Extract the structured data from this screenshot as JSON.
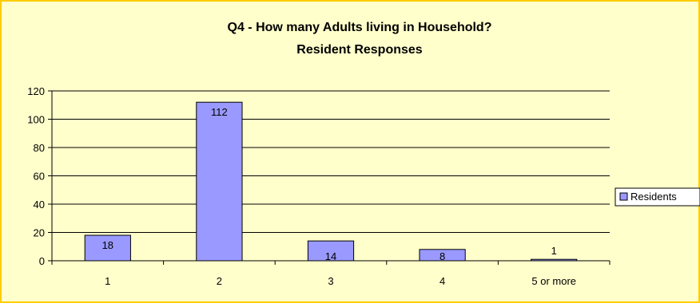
{
  "chart_data": {
    "type": "bar",
    "title": "Q4 - How many Adults living in Household?",
    "subtitle": "Resident Responses",
    "xlabel": "",
    "ylabel": "",
    "categories": [
      "1",
      "2",
      "3",
      "4",
      "5 or more"
    ],
    "series": [
      {
        "name": "Residents",
        "values": [
          18,
          112,
          14,
          8,
          1
        ]
      }
    ],
    "data_labels": [
      "18",
      "112",
      "14",
      "8",
      "1"
    ],
    "ylim": [
      0,
      120
    ],
    "yticks": [
      0,
      20,
      40,
      60,
      80,
      100,
      120
    ],
    "grid": true,
    "legend_position": "right",
    "colors": {
      "background": "#FFFFCC",
      "border": "#FFCC00",
      "bar_fill": "#9999FF",
      "bar_stroke": "#000000",
      "gridline": "#000000"
    }
  }
}
